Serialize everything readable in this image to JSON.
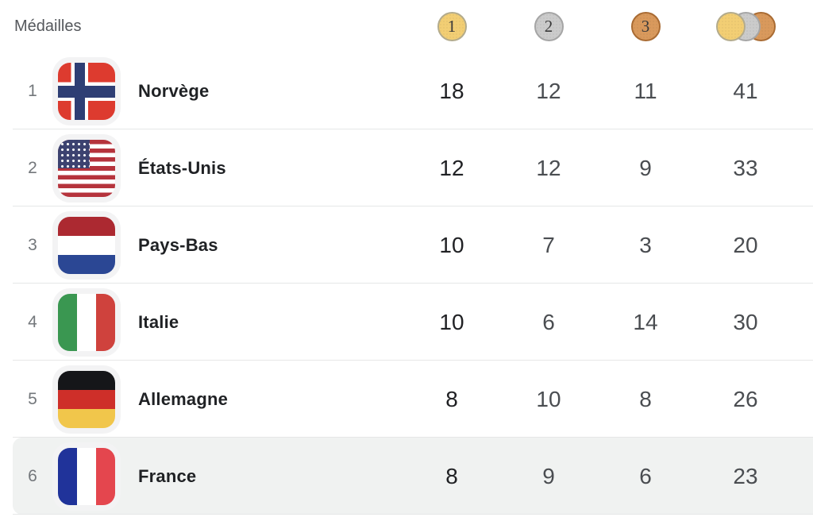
{
  "header": {
    "title": "Médailles",
    "gold_label": "1",
    "silver_label": "2",
    "bronze_label": "3"
  },
  "colors": {
    "gold": "#f2ce74",
    "gold_border": "#b3ab8c",
    "silver": "#cbcbcb",
    "silver_border": "#a5a5a5",
    "bronze": "#d9995c",
    "bronze_border": "#a96b33",
    "highlight_row": "#f0f2f1"
  },
  "rows": [
    {
      "rank": "1",
      "country": "Norvège",
      "flag": "norway",
      "gold": "18",
      "silver": "12",
      "bronze": "11",
      "total": "41",
      "highlighted": false
    },
    {
      "rank": "2",
      "country": "États-Unis",
      "flag": "usa",
      "gold": "12",
      "silver": "12",
      "bronze": "9",
      "total": "33",
      "highlighted": false
    },
    {
      "rank": "3",
      "country": "Pays-Bas",
      "flag": "netherlands",
      "gold": "10",
      "silver": "7",
      "bronze": "3",
      "total": "20",
      "highlighted": false
    },
    {
      "rank": "4",
      "country": "Italie",
      "flag": "italy",
      "gold": "10",
      "silver": "6",
      "bronze": "14",
      "total": "30",
      "highlighted": false
    },
    {
      "rank": "5",
      "country": "Allemagne",
      "flag": "germany",
      "gold": "8",
      "silver": "10",
      "bronze": "8",
      "total": "26",
      "highlighted": false
    },
    {
      "rank": "6",
      "country": "France",
      "flag": "france",
      "gold": "8",
      "silver": "9",
      "bronze": "6",
      "total": "23",
      "highlighted": true
    }
  ]
}
